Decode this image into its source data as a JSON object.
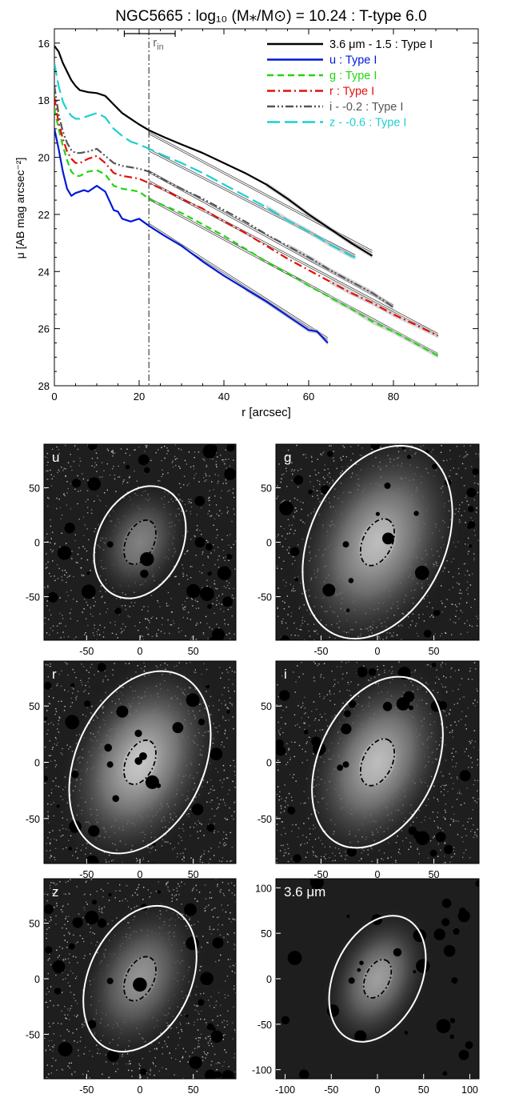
{
  "figure": {
    "title": "NGC5665 : log₁₀ (M⁎/M⊙) = 10.24 : T-type 6.0",
    "title_color": "#000000"
  },
  "chart_data": [
    {
      "type": "line",
      "xlabel": "r [arcsec]",
      "ylabel": "μ [AB mag arcsec⁻²]",
      "xlim": [
        0,
        100
      ],
      "ylim": [
        28,
        15.5
      ],
      "y_inverted": true,
      "x_ticks": [
        "0",
        "20",
        "40",
        "60",
        "80"
      ],
      "y_ticks": [
        "16",
        "18",
        "20",
        "22",
        "24",
        "26",
        "28"
      ],
      "grid": false,
      "legend_placement": "top-right",
      "annotations": {
        "r_in_label": "r",
        "r_in_sub": "in",
        "r_in_value": 22.3,
        "r_in_err": [
          16.5,
          28.5
        ]
      },
      "series": [
        {
          "name": "3.6 μm - 1.5 : Type I",
          "color": "#000000",
          "dash": "solid",
          "x": [
            0,
            1,
            2,
            3,
            4,
            5,
            6,
            8,
            10,
            12,
            14,
            16,
            18,
            20,
            22.3,
            26,
            30,
            35,
            40,
            45,
            50,
            55,
            60,
            65,
            70,
            75
          ],
          "y": [
            16.1,
            16.3,
            16.7,
            17.0,
            17.3,
            17.5,
            17.65,
            17.72,
            17.75,
            17.85,
            18.15,
            18.45,
            18.65,
            18.85,
            19.05,
            19.3,
            19.55,
            19.85,
            20.2,
            20.55,
            20.95,
            21.45,
            22.0,
            22.5,
            23.0,
            23.45
          ],
          "fit": {
            "x": [
              22.3,
              75
            ],
            "y": [
              19.15,
              23.3
            ]
          }
        },
        {
          "name": "u : Type I",
          "color": "#0019d6",
          "dash": "solid",
          "x": [
            0,
            1,
            2,
            3,
            4,
            5,
            6,
            7,
            8,
            10,
            12,
            14,
            15,
            16,
            18,
            20,
            22.3,
            26,
            30,
            35,
            40,
            45,
            50,
            55,
            60,
            62,
            64.5
          ],
          "y": [
            19.0,
            19.7,
            20.5,
            21.1,
            21.35,
            21.25,
            21.2,
            21.15,
            21.2,
            21.0,
            21.2,
            21.85,
            21.9,
            22.15,
            22.25,
            22.15,
            22.4,
            22.75,
            23.1,
            23.65,
            24.15,
            24.6,
            25.05,
            25.55,
            26.05,
            26.1,
            26.5
          ],
          "fit": {
            "x": [
              22.3,
              64.5
            ],
            "y": [
              22.35,
              26.35
            ]
          }
        },
        {
          "name": "g : Type I",
          "color": "#22d411",
          "dash": "8,5",
          "x": [
            0,
            1,
            2,
            3,
            4,
            5,
            6,
            8,
            10,
            12,
            14,
            16,
            18,
            20,
            22.3,
            26,
            30,
            35,
            40,
            45,
            50,
            55,
            60,
            65,
            70,
            75,
            80,
            85,
            90.5
          ],
          "y": [
            18.3,
            19.0,
            19.6,
            20.1,
            20.5,
            20.65,
            20.65,
            20.5,
            20.45,
            20.6,
            21.0,
            21.1,
            21.15,
            21.2,
            21.45,
            21.7,
            21.95,
            22.35,
            22.75,
            23.2,
            23.65,
            24.05,
            24.5,
            24.9,
            25.3,
            25.75,
            26.1,
            26.5,
            26.95
          ],
          "fit": {
            "x": [
              22.3,
              90.5
            ],
            "y": [
              21.45,
              26.9
            ]
          }
        },
        {
          "name": "r : Type I",
          "color": "#e0100b",
          "dash": "10,4,2,4",
          "x": [
            0,
            1,
            2,
            3,
            4,
            5,
            6,
            8,
            10,
            12,
            14,
            16,
            18,
            20,
            22.3,
            26,
            30,
            35,
            40,
            45,
            50,
            55,
            60,
            65,
            70,
            75,
            80,
            85,
            90.5
          ],
          "y": [
            17.9,
            18.8,
            19.35,
            19.8,
            20.05,
            20.2,
            20.2,
            20.05,
            19.95,
            20.2,
            20.55,
            20.65,
            20.7,
            20.75,
            20.9,
            21.15,
            21.45,
            21.8,
            22.25,
            22.65,
            23.1,
            23.55,
            23.95,
            24.35,
            24.75,
            25.1,
            25.5,
            25.85,
            26.25
          ],
          "fit": {
            "x": [
              22.3,
              90.5
            ],
            "y": [
              20.85,
              26.2
            ]
          }
        },
        {
          "name": "i - -0.2 : Type I",
          "color": "#555555",
          "dash": "10,3,2,3,2,3",
          "x": [
            0,
            1,
            2,
            3,
            4,
            5,
            6,
            8,
            10,
            12,
            14,
            16,
            18,
            20,
            22.3,
            26,
            30,
            35,
            40,
            45,
            50,
            55,
            60,
            65,
            70,
            75,
            80
          ],
          "y": [
            17.5,
            18.5,
            19.1,
            19.5,
            19.75,
            19.85,
            19.85,
            19.8,
            19.7,
            19.95,
            20.2,
            20.3,
            20.35,
            20.4,
            20.5,
            20.8,
            21.1,
            21.45,
            21.85,
            22.25,
            22.7,
            23.1,
            23.5,
            23.95,
            24.35,
            24.75,
            25.25
          ],
          "fit": {
            "x": [
              22.3,
              80
            ],
            "y": [
              20.5,
              25.2
            ]
          }
        },
        {
          "name": "z - -0.6 : Type I",
          "color": "#1fcfd0",
          "dash": "16,6",
          "x": [
            0,
            1,
            2,
            3,
            4,
            5,
            6,
            8,
            10,
            12,
            14,
            16,
            18,
            20,
            22.3,
            26,
            30,
            35,
            40,
            45,
            50,
            55,
            60,
            65,
            70,
            71
          ],
          "y": [
            16.7,
            17.5,
            18.05,
            18.35,
            18.55,
            18.65,
            18.65,
            18.55,
            18.45,
            18.6,
            19.0,
            19.25,
            19.45,
            19.55,
            19.7,
            19.95,
            20.2,
            20.55,
            20.95,
            21.35,
            21.75,
            22.2,
            22.6,
            23.05,
            23.45,
            23.5
          ],
          "fit": {
            "x": [
              22.3,
              71
            ],
            "y": [
              19.75,
              23.45
            ]
          }
        }
      ]
    },
    {
      "type": "heatmap",
      "panels": [
        {
          "label": "u",
          "xticks": [
            "-50",
            "0",
            "50"
          ],
          "yticks": [
            "50",
            "0",
            "-50"
          ],
          "xlim": [
            -90,
            90
          ],
          "ylim": [
            -90,
            90
          ],
          "outer_ellipse": {
            "a": 55,
            "b": 40,
            "angle_deg": -65
          },
          "inner_ellipse": {
            "a": 22,
            "b": 13,
            "angle_deg": -65
          },
          "brightness": 0.45
        },
        {
          "label": "g",
          "xticks": [
            "-50",
            "0",
            "50"
          ],
          "yticks": [
            "50",
            "0",
            "-50"
          ],
          "xlim": [
            -90,
            90
          ],
          "ylim": [
            -90,
            90
          ],
          "outer_ellipse": {
            "a": 90,
            "b": 60,
            "angle_deg": -65
          },
          "inner_ellipse": {
            "a": 22,
            "b": 13,
            "angle_deg": -65
          },
          "brightness": 0.75
        },
        {
          "label": "r",
          "xticks": [
            "-50",
            "0",
            "50"
          ],
          "yticks": [
            "50",
            "0",
            "-50"
          ],
          "xlim": [
            -90,
            90
          ],
          "ylim": [
            -90,
            90
          ],
          "outer_ellipse": {
            "a": 90,
            "b": 60,
            "angle_deg": -65
          },
          "inner_ellipse": {
            "a": 22,
            "b": 13,
            "angle_deg": -65
          },
          "brightness": 0.8
        },
        {
          "label": "i",
          "xticks": [
            "-50",
            "0",
            "50"
          ],
          "yticks": [
            "50",
            "0",
            "-50"
          ],
          "xlim": [
            -90,
            90
          ],
          "ylim": [
            -90,
            90
          ],
          "outer_ellipse": {
            "a": 80,
            "b": 52,
            "angle_deg": -65
          },
          "inner_ellipse": {
            "a": 22,
            "b": 13,
            "angle_deg": -65
          },
          "brightness": 0.75
        },
        {
          "label": "z",
          "xticks": [
            "-50",
            "0",
            "50"
          ],
          "yticks": [
            "50",
            "0",
            "-50"
          ],
          "xlim": [
            -90,
            90
          ],
          "ylim": [
            -90,
            90
          ],
          "outer_ellipse": {
            "a": 72,
            "b": 48,
            "angle_deg": -65
          },
          "inner_ellipse": {
            "a": 22,
            "b": 13,
            "angle_deg": -65
          },
          "brightness": 0.55
        },
        {
          "label": "3.6 μm",
          "xticks": [
            "-100",
            "-50",
            "0",
            "50",
            "100"
          ],
          "yticks": [
            "100",
            "50",
            "0",
            "-50",
            "-100"
          ],
          "xlim": [
            -110,
            110
          ],
          "ylim": [
            -110,
            110
          ],
          "outer_ellipse": {
            "a": 72,
            "b": 47,
            "angle_deg": -65
          },
          "inner_ellipse": {
            "a": 22,
            "b": 13,
            "angle_deg": -65
          },
          "brightness": 0.6
        }
      ]
    }
  ]
}
